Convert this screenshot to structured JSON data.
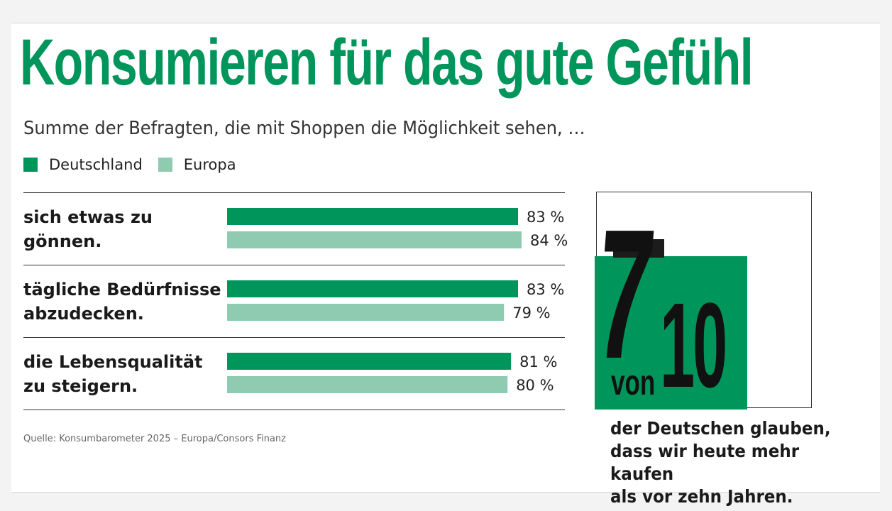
{
  "header": {
    "title": "Konsumieren für das gute Gefühl",
    "subtitle": "Summe der Befragten, die mit Shoppen die Möglichkeit sehen, …"
  },
  "legend": [
    {
      "label": "Deutschland",
      "color": "#00955a"
    },
    {
      "label": "Europa",
      "color": "#8ecbb0"
    }
  ],
  "chart_data": {
    "type": "bar",
    "orientation": "horizontal",
    "categories": [
      [
        "sich etwas zu",
        "gönnen."
      ],
      [
        "tägliche Bedürfnisse",
        "abzudecken."
      ],
      [
        "die Lebensqualität",
        "zu steigern."
      ]
    ],
    "series": [
      {
        "name": "Deutschland",
        "color": "#00955a",
        "values": [
          83,
          83,
          81
        ],
        "labels": [
          "83 %",
          "83 %",
          "81 %"
        ]
      },
      {
        "name": "Europa",
        "color": "#8ecbb0",
        "values": [
          84,
          79,
          80
        ],
        "labels": [
          "84 %",
          "79 %",
          "80 %"
        ]
      }
    ],
    "xlim": [
      0,
      100
    ],
    "legend_position": "top-left",
    "grid": false
  },
  "source": "Quelle: Konsumbarometer 2025 – Europa/Consors Finanz",
  "stat": {
    "numerator": "7",
    "von": "von",
    "denominator": "10",
    "caption_lines": [
      "der Deutschen glauben,",
      "dass wir heute mehr kaufen",
      "als vor zehn Jahren."
    ]
  }
}
